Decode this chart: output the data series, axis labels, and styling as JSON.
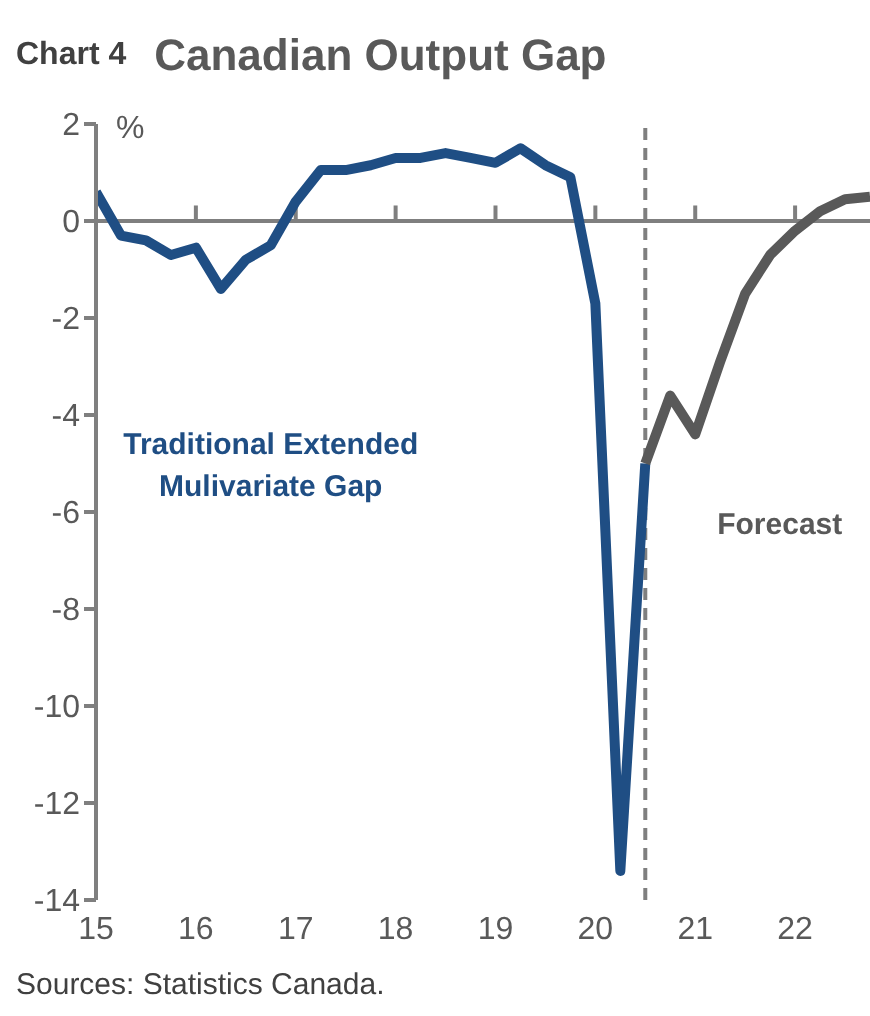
{
  "chart_data": {
    "type": "line",
    "title": "Canadian Output Gap",
    "ylabel": "%",
    "annotations": [
      "Chart 4",
      "Sources: Statistics Canada."
    ],
    "xlim": [
      15,
      22.75
    ],
    "xticks": [
      15,
      16,
      17,
      18,
      19,
      20,
      21,
      22
    ],
    "ylim": [
      -14,
      2
    ],
    "yticks": [
      2,
      0,
      -2,
      -4,
      -6,
      -8,
      -10,
      -12,
      -14
    ],
    "grid": false,
    "legend": false,
    "marker": "none",
    "line_style": "solid",
    "ref_lines": [
      {
        "axis": "y",
        "value": 0,
        "label": null,
        "color": "#7f7f7f",
        "line_style": "solid"
      },
      {
        "axis": "x",
        "value": 20.5,
        "label": null,
        "color": "#7f7f7f",
        "line_style": "dashed"
      }
    ],
    "series": [
      {
        "name": "Traditional Extended Mulivariate Gap",
        "color": "#1f4e84",
        "x": [
          15,
          15.25,
          15.5,
          15.75,
          16,
          16.25,
          16.5,
          16.75,
          17,
          17.25,
          17.5,
          17.75,
          18,
          18.25,
          18.5,
          18.75,
          19,
          19.25,
          19.5,
          19.75,
          20,
          20.25,
          20.5
        ],
        "values": [
          0.6,
          -0.3,
          -0.4,
          -0.7,
          -0.55,
          -1.4,
          -0.8,
          -0.5,
          0.4,
          1.05,
          1.05,
          1.15,
          1.3,
          1.3,
          1.4,
          1.3,
          1.2,
          1.5,
          1.15,
          0.9,
          -1.7,
          -13.4,
          -5.0
        ]
      },
      {
        "name": "Forecast",
        "color": "#595959",
        "x": [
          20.5,
          20.75,
          21,
          21.25,
          21.5,
          21.75,
          22,
          22.25,
          22.5,
          22.75
        ],
        "values": [
          -5.0,
          -3.6,
          -4.4,
          -2.9,
          -1.5,
          -0.7,
          -0.2,
          0.2,
          0.45,
          0.5
        ]
      }
    ]
  }
}
